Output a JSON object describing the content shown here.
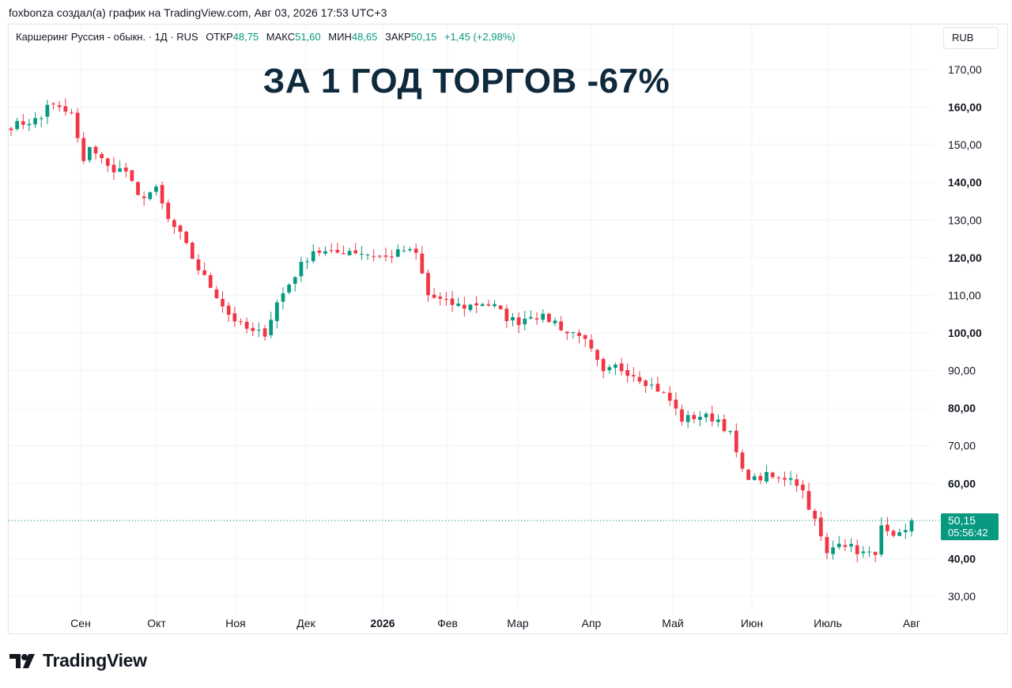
{
  "attribution": "foxbonza создал(а) график на TradingView.com, Авг 03, 2026 17:53 UTC+3",
  "legend": {
    "symbol": "Каршеринг Руссия - обыкн. · 1Д · RUS",
    "open_label": "ОТКР",
    "open": "48,75",
    "high_label": "МАКС",
    "high": "51,60",
    "low_label": "МИН",
    "low": "48,65",
    "close_label": "ЗАКР",
    "close": "50,15",
    "change": "+1,45 (+2,98%)"
  },
  "currency": "RUB",
  "headline": "ЗА 1 ГОД ТОРГОВ -67%",
  "price_tag": {
    "price": "50,15",
    "countdown": "05:56:42"
  },
  "brand": {
    "name": "TradingView",
    "icon": "tradingview-logo-icon"
  },
  "colors": {
    "up": "#089981",
    "down": "#f23645",
    "grid": "#f0f3fa",
    "tag": "#089981"
  },
  "chart_data": {
    "type": "candlestick",
    "y_axis": {
      "ticks": [
        "170,00",
        "160,00",
        "150,00",
        "140,00",
        "130,00",
        "120,00",
        "110,00",
        "100,00",
        "90,00",
        "80,00",
        "70,00",
        "60,00",
        "50,00",
        "40,00",
        "30,00"
      ],
      "tick_values": [
        170,
        160,
        150,
        140,
        130,
        120,
        110,
        100,
        90,
        80,
        70,
        60,
        50,
        40,
        30
      ],
      "bold_ticks": [
        "160,00",
        "140,00",
        "120,00",
        "100,00",
        "80,00",
        "60,00",
        "40,00"
      ],
      "range": [
        27,
        177
      ],
      "position": "right"
    },
    "x_axis": {
      "labels": [
        "Сен",
        "Окт",
        "Ноя",
        "Дек",
        "2026",
        "Фев",
        "Мар",
        "Апр",
        "Май",
        "Июн",
        "Июль",
        "Авг"
      ],
      "bold_labels": [
        "2026"
      ]
    },
    "last_price": 50.15,
    "grid": true,
    "series_path": [
      [
        0,
        155
      ],
      [
        5,
        157
      ],
      [
        6,
        161
      ],
      [
        10,
        158
      ],
      [
        12,
        145
      ],
      [
        13,
        150
      ],
      [
        16,
        144
      ],
      [
        19,
        143
      ],
      [
        21,
        136
      ],
      [
        24,
        138
      ],
      [
        26,
        130
      ],
      [
        28,
        126
      ],
      [
        31,
        117
      ],
      [
        34,
        110
      ],
      [
        36,
        105
      ],
      [
        38,
        102
      ],
      [
        40,
        100
      ],
      [
        42,
        100
      ],
      [
        44,
        108
      ],
      [
        46,
        113
      ],
      [
        48,
        118
      ],
      [
        50,
        122
      ],
      [
        53,
        121
      ],
      [
        56,
        122
      ],
      [
        59,
        121
      ],
      [
        62,
        120
      ],
      [
        65,
        122
      ],
      [
        67,
        121
      ],
      [
        69,
        110
      ],
      [
        72,
        108
      ],
      [
        75,
        107
      ],
      [
        78,
        108
      ],
      [
        80,
        107
      ],
      [
        82,
        104
      ],
      [
        84,
        103
      ],
      [
        86,
        105
      ],
      [
        88,
        104
      ],
      [
        90,
        103
      ],
      [
        92,
        100
      ],
      [
        94,
        100
      ],
      [
        96,
        95
      ],
      [
        98,
        89
      ],
      [
        100,
        91
      ],
      [
        103,
        89
      ],
      [
        105,
        87
      ],
      [
        107,
        85
      ],
      [
        109,
        82
      ],
      [
        111,
        77
      ],
      [
        114,
        78
      ],
      [
        117,
        77
      ],
      [
        119,
        73
      ],
      [
        121,
        63
      ],
      [
        123,
        61
      ],
      [
        125,
        62
      ],
      [
        127,
        61
      ],
      [
        129,
        62
      ],
      [
        131,
        58
      ],
      [
        133,
        50
      ],
      [
        135,
        41
      ],
      [
        137,
        45
      ],
      [
        140,
        42
      ],
      [
        142,
        41
      ],
      [
        143,
        42
      ],
      [
        144,
        48
      ],
      [
        146,
        45
      ],
      [
        148,
        47
      ],
      [
        149,
        50.15
      ]
    ],
    "total_bars": 150
  }
}
